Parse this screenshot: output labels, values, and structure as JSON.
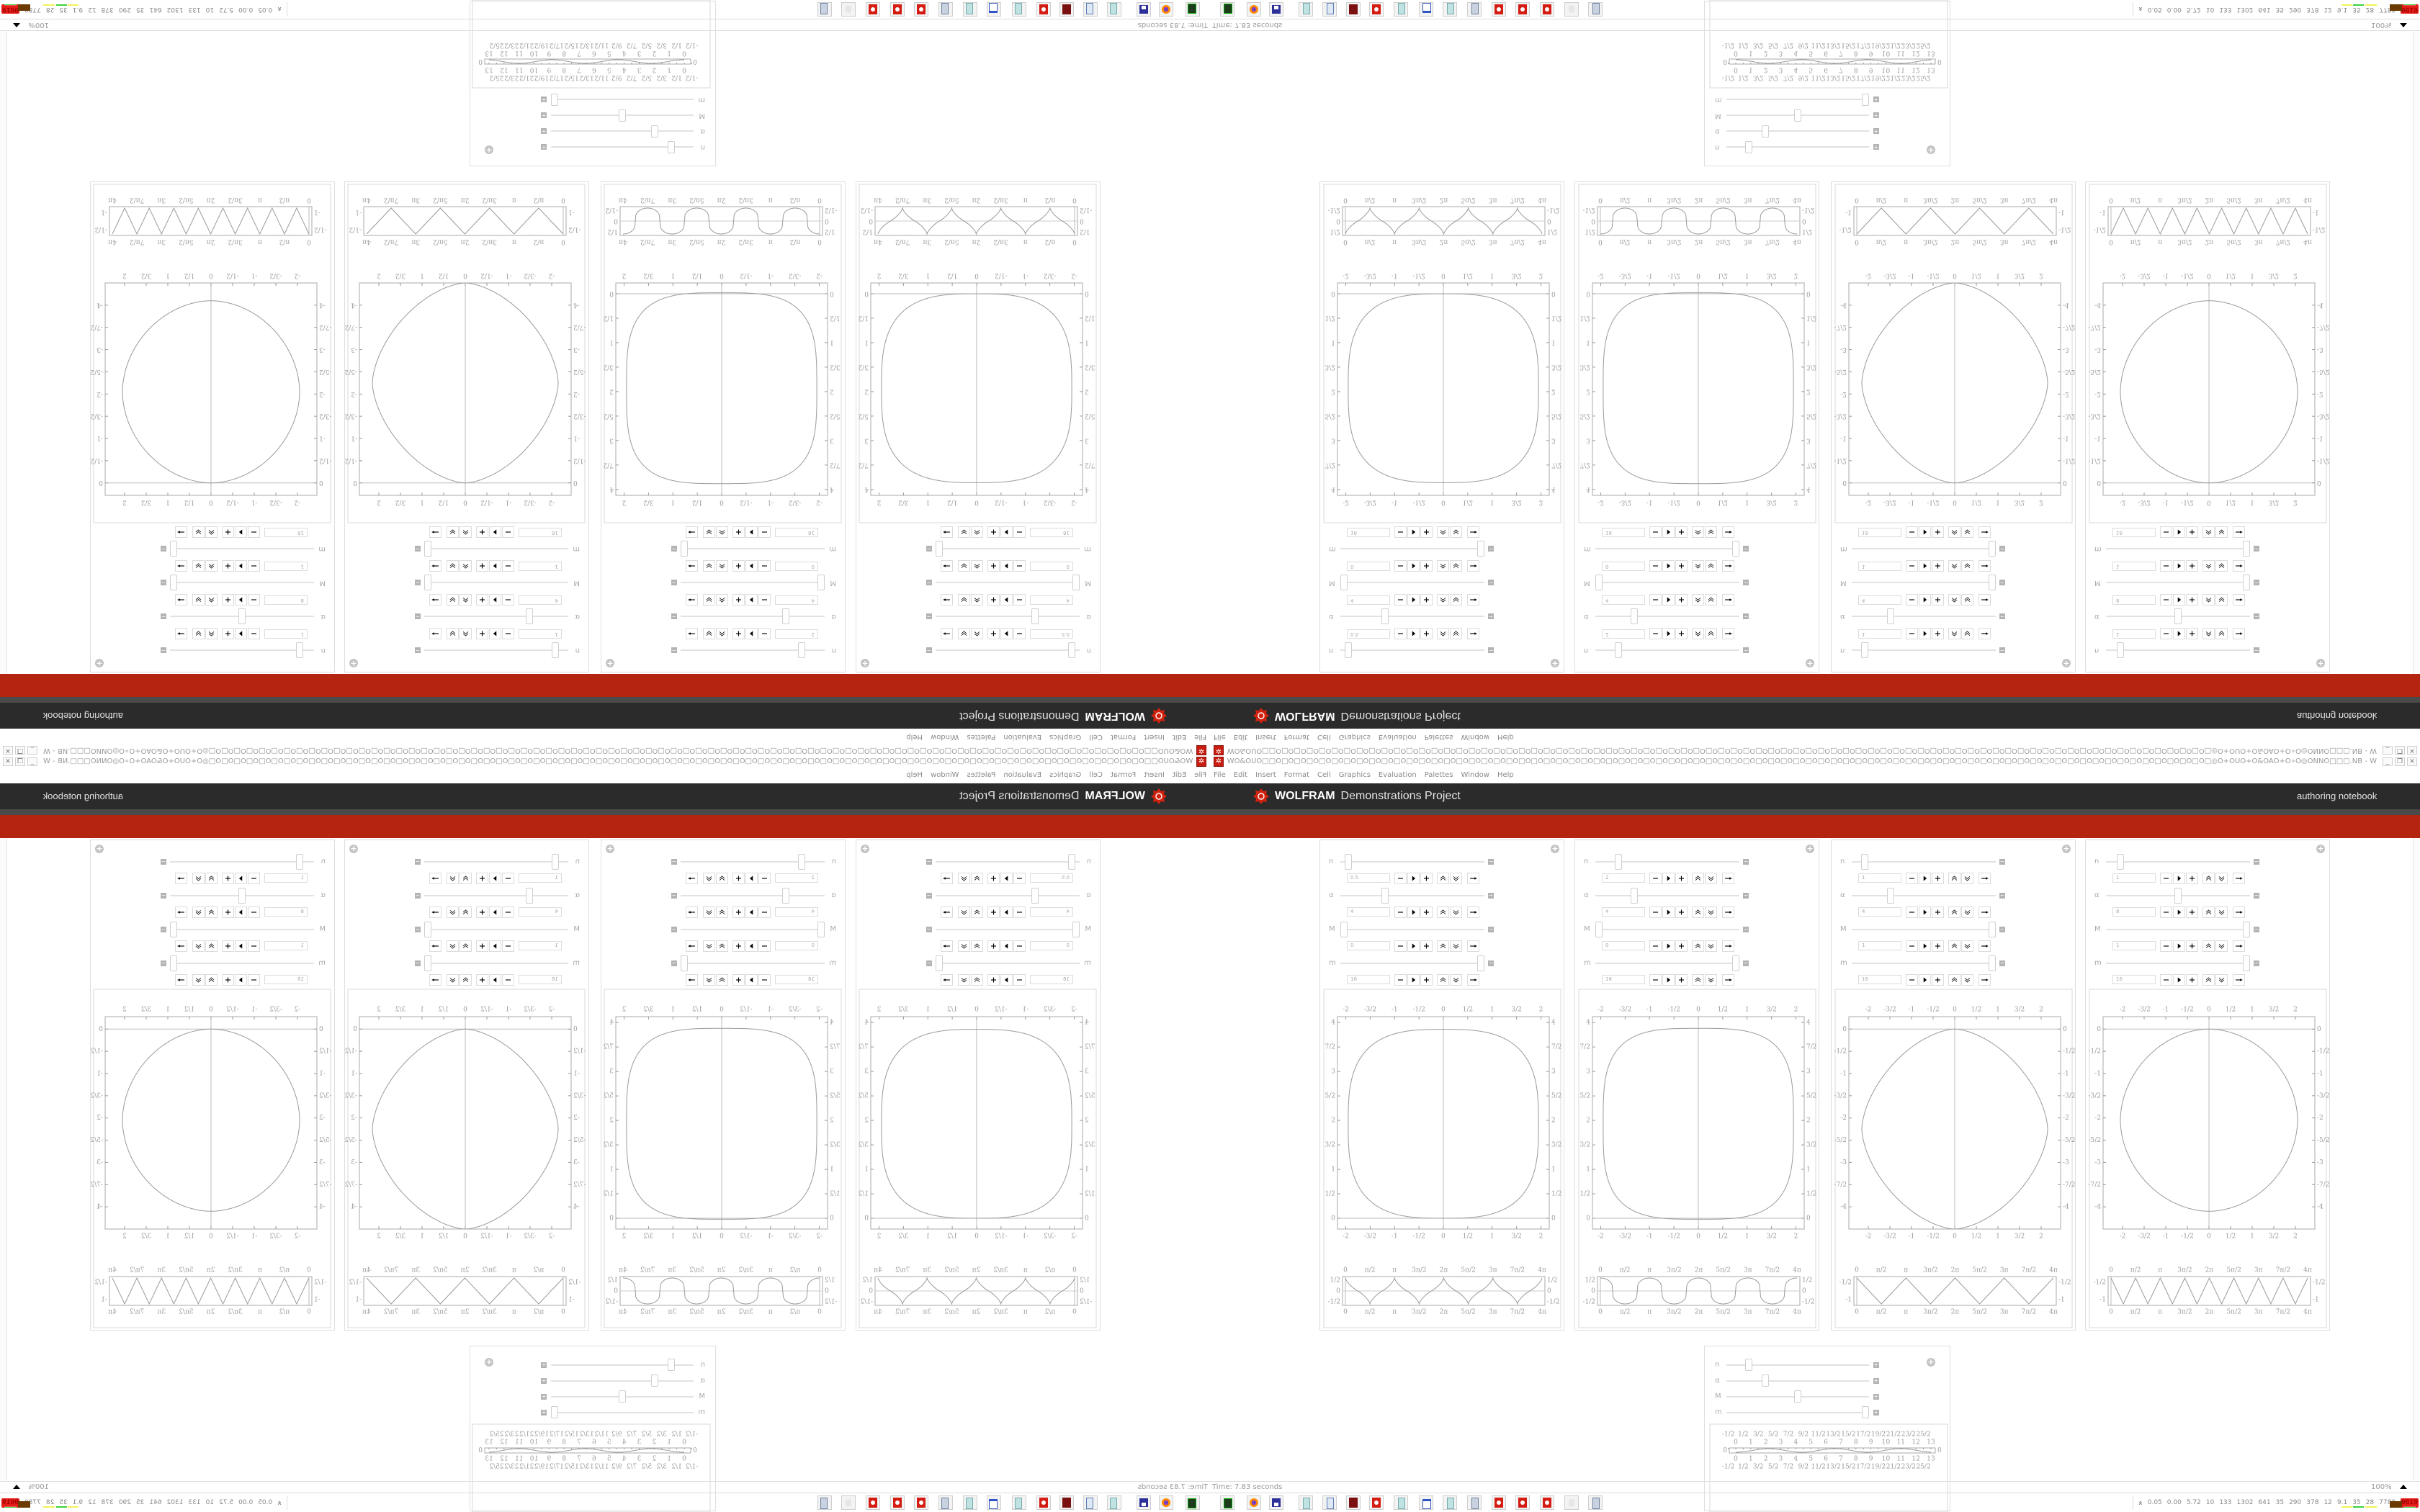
{
  "window": {
    "title": "ᴎB□□□ONNO◎O∘O+OAO&O+OƐZONNO◎OWOƐZO□O□ONNO◎O∘O+OAOUOUO+O∘ONNOAOWO□OƐZO+OUO+OAOWO&OUO□□O□O□O□O□O□O□O□O□O□O□O□O□O□O□O□O□O□O□O□O□O□O□O□O□O□O□O□O□O□O□O□O□O□O□O□O□O□O□O□O□O□O□O□O□O□O□O□O□O□O□O□O□O□O□O□O□O□O□O□O□O□O□O□O□O□O□O□O□O□O□O□O□O□O□O□◎O+OUO+O&OAO+O∘O◎ONNO□□□.NB - W",
    "app_icon": "wolfram-gear-icon",
    "controls": [
      "minimize",
      "restore",
      "close"
    ]
  },
  "menu": [
    "File",
    "Edit",
    "Insert",
    "Format",
    "Cell",
    "Graphics",
    "Evaluation",
    "Palettes",
    "Window",
    "Help"
  ],
  "banner": {
    "brand": "WOLFRAM",
    "product": "Demonstrations Project",
    "link": "authoring notebook",
    "colors": {
      "dark": "#2b2b2b",
      "gray": "#4b4b4b",
      "red": "#b52410"
    }
  },
  "panels": [
    {
      "controls": [
        {
          "label": "n",
          "value": "0.5",
          "position": 0.03
        },
        {
          "label": "α",
          "value": "4",
          "position": 0.3
        },
        {
          "label": "M",
          "value": "0",
          "position": 0.0
        },
        {
          "label": "m",
          "value": "16",
          "position": 1.0
        }
      ],
      "plot": {
        "xticks": [
          "-2",
          "-3/2",
          "-1",
          "-1/2",
          "0",
          "1/2",
          "1",
          "3/2",
          "2"
        ],
        "yticks": [
          "0",
          "1/2",
          "1",
          "3/2",
          "2",
          "5/2",
          "3",
          "7/2",
          "4"
        ]
      },
      "strip": {
        "xticks": [
          "0",
          "π/2",
          "π",
          "3π/2",
          "2π",
          "5π/2",
          "3π",
          "7π/2",
          "4π"
        ],
        "yticks": [
          "-1/2",
          "0",
          "1/2"
        ]
      }
    },
    {
      "controls": [
        {
          "label": "n",
          "value": "2",
          "position": 0.14
        },
        {
          "label": "α",
          "value": "4",
          "position": 0.26
        },
        {
          "label": "M",
          "value": "0",
          "position": 0.0
        },
        {
          "label": "m",
          "value": "16",
          "position": 1.0
        }
      ],
      "plot": {
        "xticks": [
          "-2",
          "-3/2",
          "-1",
          "-1/2",
          "0",
          "1/2",
          "1",
          "3/2",
          "2"
        ],
        "yticks": [
          "0",
          "1/2",
          "1",
          "3/2",
          "2",
          "5/2",
          "3",
          "7/2",
          "4"
        ]
      },
      "strip": {
        "xticks": [
          "0",
          "π/2",
          "π",
          "3π/2",
          "2π",
          "5π/2",
          "3π",
          "7π/2",
          "4π"
        ],
        "yticks": [
          "-1/2",
          "0",
          "1/2"
        ]
      }
    },
    {
      "controls": [
        {
          "label": "n",
          "value": "1",
          "position": 0.07
        },
        {
          "label": "α",
          "value": "4",
          "position": 0.26
        },
        {
          "label": "M",
          "value": "1",
          "position": 1.0
        },
        {
          "label": "m",
          "value": "16",
          "position": 1.0
        }
      ],
      "plot": {
        "xticks": [
          "-2",
          "-3/2",
          "-1",
          "-1/2",
          "0",
          "1/2",
          "1",
          "3/2",
          "2"
        ],
        "yticks": [
          "-4",
          "-7/2",
          "-3",
          "-5/2",
          "-2",
          "-3/2",
          "-1",
          "-1/2",
          "0"
        ]
      },
      "strip": {
        "xticks": [
          "0",
          "π/2",
          "π",
          "3π/2",
          "2π",
          "5π/2",
          "3π",
          "7π/2",
          "4π"
        ],
        "yticks": [
          "-1",
          "-1/2"
        ]
      }
    },
    {
      "controls": [
        {
          "label": "n",
          "value": "1",
          "position": 0.08
        },
        {
          "label": "α",
          "value": "8",
          "position": 0.5
        },
        {
          "label": "M",
          "value": "1",
          "position": 1.0
        },
        {
          "label": "m",
          "value": "16",
          "position": 1.0
        }
      ],
      "plot": {
        "xticks": [
          "-2",
          "-3/2",
          "-1",
          "-1/2",
          "0",
          "1/2",
          "1",
          "3/2",
          "2"
        ],
        "yticks": [
          "-4",
          "-7/2",
          "-3",
          "-5/2",
          "-2",
          "-3/2",
          "-1",
          "-1/2",
          "0"
        ]
      },
      "strip": {
        "xticks": [
          "0",
          "π/2",
          "π",
          "3π/2",
          "2π",
          "5π/2",
          "3π",
          "7π/2",
          "4π"
        ],
        "yticks": [
          "-1",
          "-1/2"
        ]
      }
    }
  ],
  "small_panel": {
    "controls": [
      {
        "label": "n",
        "position": 0.14
      },
      {
        "label": "α",
        "position": 0.26
      },
      {
        "label": "M",
        "position": 0.5
      },
      {
        "label": "m",
        "position": 1.0
      }
    ],
    "strip": {
      "xticks": [
        "-1/2",
        "0",
        "1/2",
        "1",
        "3/2",
        "2",
        "5/2",
        "3",
        "7/2",
        "4",
        "9/2",
        "5",
        "11/2",
        "6",
        "13/2",
        "7",
        "15/2",
        "8",
        "17/2",
        "9",
        "19/2",
        "10",
        "21/2",
        "11",
        "23/2",
        "12",
        "25/2",
        "13"
      ],
      "yticks": [
        "0"
      ]
    }
  },
  "status": {
    "time": "Time: 7.83 seconds",
    "zoom": "100%"
  },
  "taskbar": {
    "icons": [
      "terminal-icon",
      "firefox-icon",
      "floppy-disk-icon",
      "notepad-icon",
      "calculator-icon",
      "mathematica-icon",
      "wolfram-gear-icon",
      "notepad-icon",
      "window-icon",
      "notepad-icon",
      "scroll-icon",
      "wolfram-gear-icon",
      "wolfram-gear-icon",
      "wolfram-gear-icon",
      "ghost-icon",
      "scroll-icon"
    ],
    "meters": [
      "0.05",
      "0.00",
      "5.72",
      "10",
      "133",
      "1302",
      "641",
      "35",
      "290",
      "378",
      "12",
      "9.1",
      "35",
      "28",
      "7780"
    ],
    "alert": "9619",
    "alert_color": "#e41b17"
  }
}
